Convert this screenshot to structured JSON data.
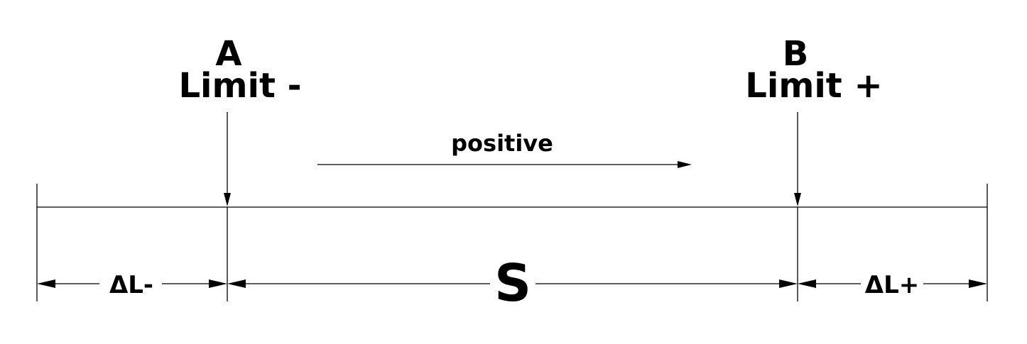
{
  "diagram": {
    "limit_minus": {
      "letter": "A",
      "label": "Limit -"
    },
    "limit_plus": {
      "letter": "B",
      "label": "Limit +"
    },
    "direction_label": "positive",
    "dimensions": {
      "delta_minus": "ΔL-",
      "stroke": "S",
      "delta_plus": "ΔL+"
    }
  },
  "colors": {
    "line": "#000000",
    "background": "#ffffff"
  }
}
